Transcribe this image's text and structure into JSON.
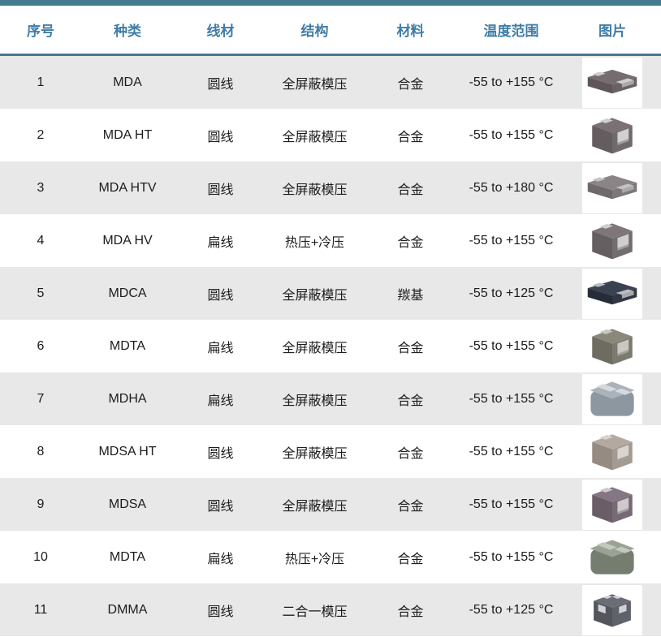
{
  "colors": {
    "accent_bar": "#44798f",
    "header_text": "#3f7da6",
    "row_stripe": "#e8e8e8",
    "body_text": "#1c1c1c"
  },
  "table": {
    "columns": [
      {
        "label": "序号"
      },
      {
        "label": "种类"
      },
      {
        "label": "线材"
      },
      {
        "label": "结构"
      },
      {
        "label": "材料"
      },
      {
        "label": "温度范围"
      },
      {
        "label": "图片"
      }
    ],
    "rows": [
      {
        "index": "1",
        "type": "MDA",
        "wire": "圆线",
        "structure": "全屏蔽模压",
        "material": "合金",
        "temp_range": "-55 to +155 °C",
        "image": {
          "icon": "inductor-flat-icon",
          "variant": "flat",
          "top": "#756c6f",
          "front": "#5e5659",
          "side": "#6a6164",
          "metal": "#cfcdcb"
        }
      },
      {
        "index": "2",
        "type": "MDA HT",
        "wire": "圆线",
        "structure": "全屏蔽模压",
        "material": "合金",
        "temp_range": "-55 to +155 °C",
        "image": {
          "icon": "inductor-cube-icon",
          "variant": "cube",
          "top": "#7b7174",
          "front": "#645c5f",
          "side": "#716a6c",
          "metal": "#d2d0ce"
        }
      },
      {
        "index": "3",
        "type": "MDA HTV",
        "wire": "圆线",
        "structure": "全屏蔽模压",
        "material": "合金",
        "temp_range": "-55 to +180 °C",
        "image": {
          "icon": "inductor-flat-icon",
          "variant": "flat",
          "top": "#8a8487",
          "front": "#6f696c",
          "side": "#7d7779",
          "metal": "#c5c3c1"
        }
      },
      {
        "index": "4",
        "type": "MDA HV",
        "wire": "扁线",
        "structure": "热压+冷压",
        "material": "合金",
        "temp_range": "-55 to +155 °C",
        "image": {
          "icon": "inductor-cube-icon",
          "variant": "cube",
          "top": "#7e7678",
          "front": "#665f61",
          "side": "#746d6f",
          "metal": "#d0cecc"
        }
      },
      {
        "index": "5",
        "type": "MDCA",
        "wire": "圆线",
        "structure": "全屏蔽模压",
        "material": "羰基",
        "temp_range": "-55 to +125 °C",
        "image": {
          "icon": "inductor-flat-icon",
          "variant": "flat",
          "top": "#3a4150",
          "front": "#262c38",
          "side": "#303644",
          "metal": "#b9bcc2"
        }
      },
      {
        "index": "6",
        "type": "MDTA",
        "wire": "扁线",
        "structure": "全屏蔽模压",
        "material": "合金",
        "temp_range": "-55 to +155 °C",
        "image": {
          "icon": "inductor-cube-icon",
          "variant": "cube",
          "top": "#8a887a",
          "front": "#6e6c60",
          "side": "#7c7a6d",
          "metal": "#c9c8c0"
        }
      },
      {
        "index": "7",
        "type": "MDHA",
        "wire": "扁线",
        "structure": "全屏蔽模压",
        "material": "合金",
        "temp_range": "-55 to +155 °C",
        "image": {
          "icon": "inductor-rounded-icon",
          "variant": "soft",
          "top": "#aab3ba",
          "front": "#8c979f",
          "side": "#99a3aa",
          "metal": "#d6dade"
        }
      },
      {
        "index": "8",
        "type": "MDSA HT",
        "wire": "圆线",
        "structure": "全屏蔽模压",
        "material": "合金",
        "temp_range": "-55 to +155 °C",
        "image": {
          "icon": "inductor-cube-icon",
          "variant": "cube",
          "top": "#b3a9a0",
          "front": "#958b82",
          "side": "#a49a91",
          "metal": "#d8d4d0"
        }
      },
      {
        "index": "9",
        "type": "MDSA",
        "wire": "圆线",
        "structure": "全屏蔽模压",
        "material": "合金",
        "temp_range": "-55 to +155 °C",
        "image": {
          "icon": "inductor-cube-icon",
          "variant": "cube",
          "top": "#857683",
          "front": "#6a5d68",
          "side": "#786a75",
          "metal": "#cfc9cd"
        }
      },
      {
        "index": "10",
        "type": "MDTA",
        "wire": "扁线",
        "structure": "热压+冷压",
        "material": "合金",
        "temp_range": "-55 to +155 °C",
        "image": {
          "icon": "inductor-rounded-icon",
          "variant": "soft",
          "top": "#9aa294",
          "front": "#757d70",
          "side": "#878f82",
          "metal": "#c3c9bd"
        }
      },
      {
        "index": "11",
        "type": "DMMA",
        "wire": "圆线",
        "structure": "二合一模压",
        "material": "合金",
        "temp_range": "-55 to +125 °C",
        "image": {
          "icon": "inductor-quadpad-icon",
          "variant": "quad",
          "top": "#6b6d75",
          "front": "#54565e",
          "side": "#60626a",
          "metal": "#d0d2d6"
        }
      }
    ]
  }
}
